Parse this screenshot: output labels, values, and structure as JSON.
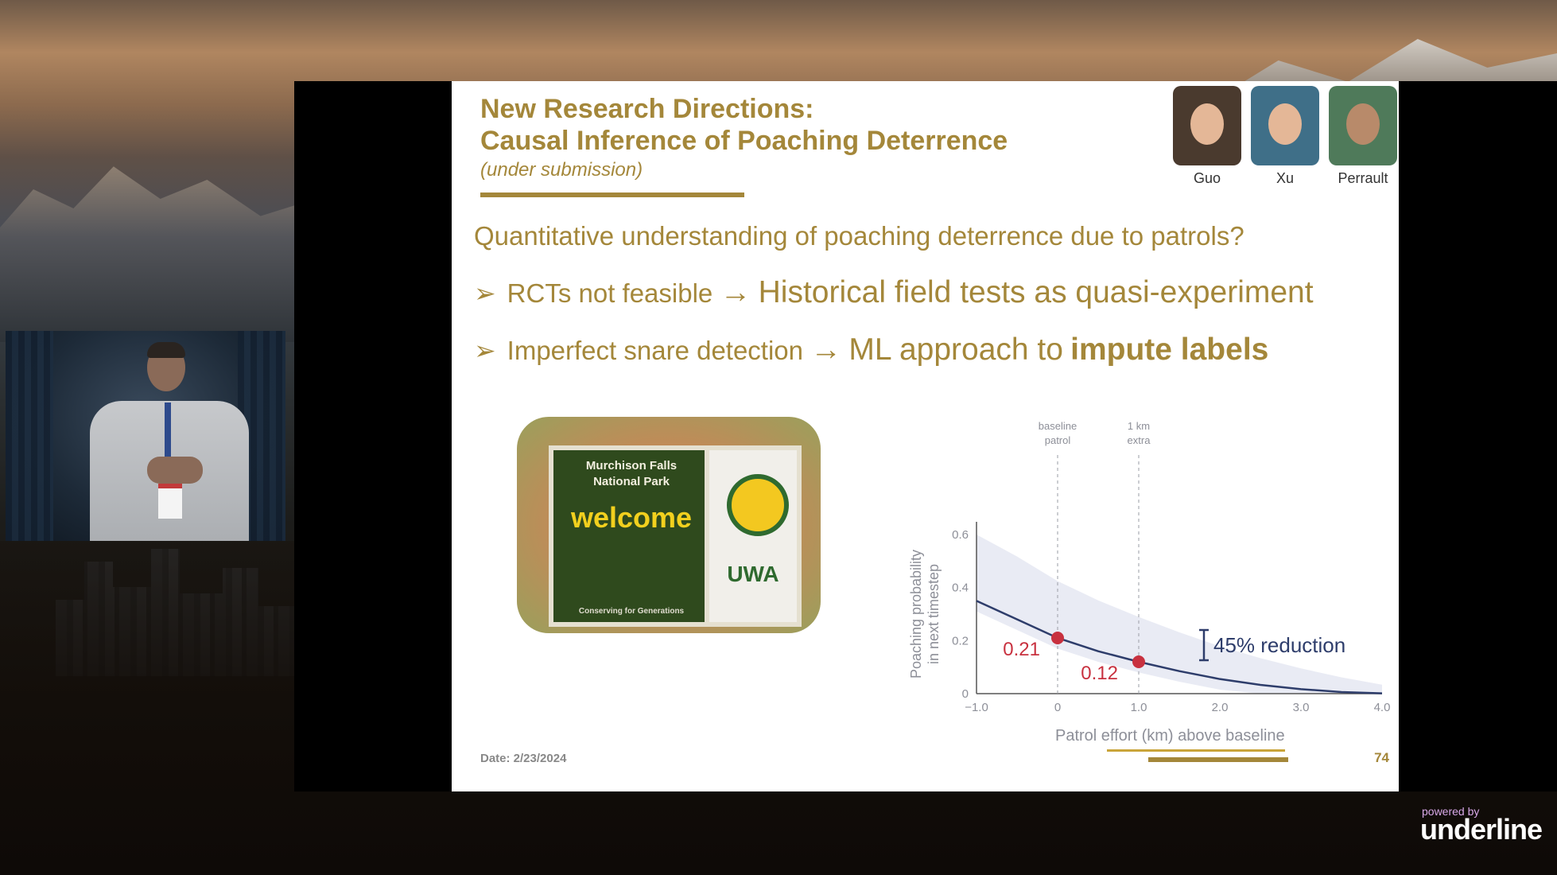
{
  "slide": {
    "title_line1": "New Research Directions:",
    "title_line2": "Causal Inference of Poaching Deterrence",
    "subtitle": "(under submission)",
    "authors": [
      {
        "name": "Guo"
      },
      {
        "name": "Xu"
      },
      {
        "name": "Perrault"
      }
    ],
    "question": "Quantitative understanding of poaching deterrence due to patrols?",
    "bullets": [
      {
        "marker": "➢",
        "lead": "RCTs not feasible",
        "arrow": "→",
        "rest": "Historical field tests as quasi-experiment",
        "bold": ""
      },
      {
        "marker": "➢",
        "lead": "Imperfect snare detection",
        "arrow": "→",
        "rest": "ML approach to",
        "bold": "impute labels"
      }
    ],
    "photo_sign": {
      "line1": "Murchison Falls",
      "line2": "National Park",
      "welcome": "welcome",
      "motto": "Conserving for Generations",
      "logo_text": "UWA"
    },
    "date": "Date: 2/23/2024",
    "page_number": "74"
  },
  "chart_data": {
    "type": "line",
    "xlabel": "Patrol effort (km) above baseline",
    "ylabel_line1": "Poaching probability",
    "ylabel_line2": "in next timestep",
    "xlim": [
      -1.0,
      4.0
    ],
    "ylim": [
      0,
      0.6
    ],
    "x_ticks": [
      "−1.0",
      "0",
      "1.0",
      "2.0",
      "3.0",
      "4.0"
    ],
    "y_ticks": [
      "0",
      "0.2",
      "0.4",
      "0.6"
    ],
    "series": [
      {
        "x": [
          -1.0,
          -0.5,
          0,
          0.5,
          1.0,
          1.5,
          2.0,
          2.5,
          3.0,
          3.5,
          4.0
        ],
        "y": [
          0.35,
          0.28,
          0.21,
          0.16,
          0.12,
          0.085,
          0.055,
          0.033,
          0.017,
          0.006,
          0.001
        ]
      }
    ],
    "points": [
      {
        "x": 0,
        "y": 0.21,
        "label": "0.21"
      },
      {
        "x": 1.0,
        "y": 0.12,
        "label": "0.12"
      }
    ],
    "vlines": [
      {
        "x": 0,
        "label_line1": "baseline",
        "label_line2": "patrol"
      },
      {
        "x": 1.0,
        "label_line1": "1 km",
        "label_line2": "extra"
      }
    ],
    "annotation": "45% reduction",
    "colors": {
      "line": "#2e3d6b",
      "point": "#c8313f",
      "band": "#dfe2ef",
      "text": "#8d8f98"
    }
  },
  "branding": {
    "powered_by": "powered by",
    "logo": "underline"
  }
}
